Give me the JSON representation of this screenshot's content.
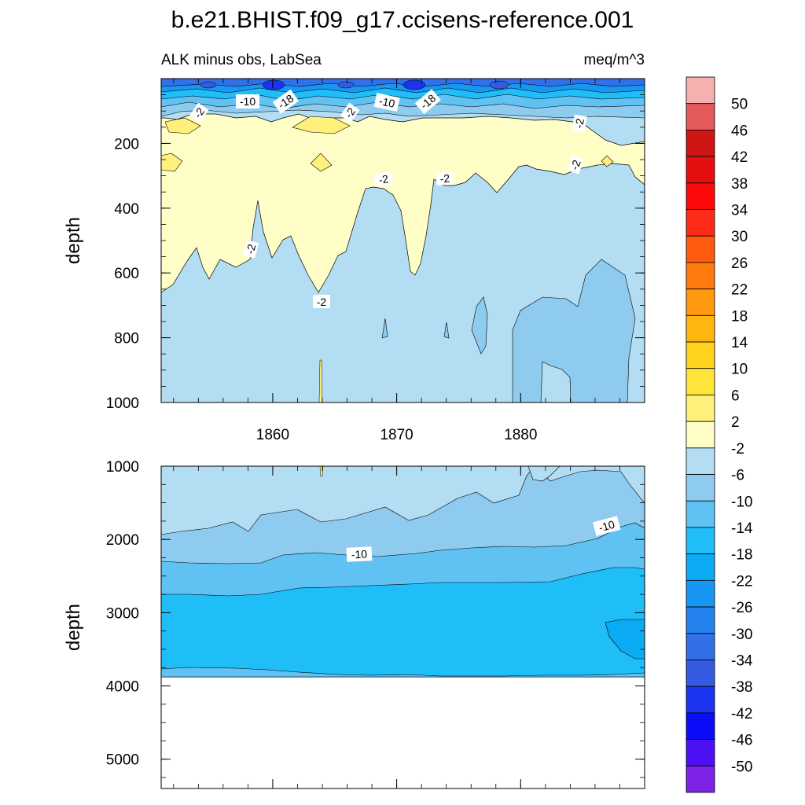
{
  "chart_data": {
    "type": "heatmap",
    "title": "b.e21.BHIST.f09_g17.ccisens-reference.001",
    "left_label": "ALK minus obs, LabSea",
    "right_label": "meq/m^3",
    "ylabel": "depth",
    "x_ticks": [
      "1860",
      "1870",
      "1880"
    ],
    "x_range": [
      1851,
      1890
    ],
    "panels": [
      {
        "name": "upper",
        "ylim": [
          0,
          1000
        ],
        "y_ticks": [
          "200",
          "400",
          "600",
          "800",
          "1000"
        ],
        "regions": [
          {
            "label": "-2 to 2",
            "color": "#fefec6"
          },
          {
            "label": "-6 to -2",
            "color": "#b3ddf2"
          },
          {
            "label": "-10 to -6",
            "color": "#8fcbef"
          },
          {
            "label": "< -10 near surface",
            "color": "#3a7de6"
          }
        ],
        "contour_labels": [
          "-10",
          "-18",
          "-2",
          "-2",
          "-10",
          "-18",
          "-2",
          "-2",
          "-2",
          "-2",
          "-2",
          "-2"
        ]
      },
      {
        "name": "lower",
        "ylim": [
          1000,
          5400
        ],
        "y_ticks": [
          "1000",
          "2000",
          "3000",
          "4000",
          "5000"
        ],
        "regions": [
          {
            "label": "-6 to -2",
            "color": "#b3ddf2"
          },
          {
            "label": "-10 to -6",
            "color": "#8fcbef"
          },
          {
            "label": "-14 to -10",
            "color": "#5fc2f2"
          },
          {
            "label": "-18 to -14",
            "color": "#1fbef9"
          },
          {
            "label": "-22 to -18",
            "color": "#0aabf3"
          }
        ],
        "contour_labels": [
          "-10",
          "-10"
        ]
      }
    ],
    "colorbar": {
      "labels": [
        "50",
        "46",
        "42",
        "38",
        "34",
        "30",
        "26",
        "22",
        "18",
        "14",
        "10",
        "6",
        "2",
        "-2",
        "-6",
        "-10",
        "-14",
        "-18",
        "-22",
        "-26",
        "-30",
        "-34",
        "-38",
        "-42",
        "-46",
        "-50"
      ],
      "colors": [
        "#f7b0b0",
        "#e45a5a",
        "#d01515",
        "#e50f0f",
        "#fe0a0a",
        "#ff2b1a",
        "#ff5a0e",
        "#ff7a0d",
        "#ff990f",
        "#ffb60f",
        "#ffd21e",
        "#ffe43a",
        "#fff07c",
        "#fefec6",
        "#b3ddf2",
        "#8fcbef",
        "#5fc2f2",
        "#1fbef9",
        "#0aabf3",
        "#1796f3",
        "#2482ee",
        "#3170e7",
        "#355be0",
        "#1c33f0",
        "#0b0cf8",
        "#4d12f3",
        "#7e22e6"
      ]
    }
  }
}
